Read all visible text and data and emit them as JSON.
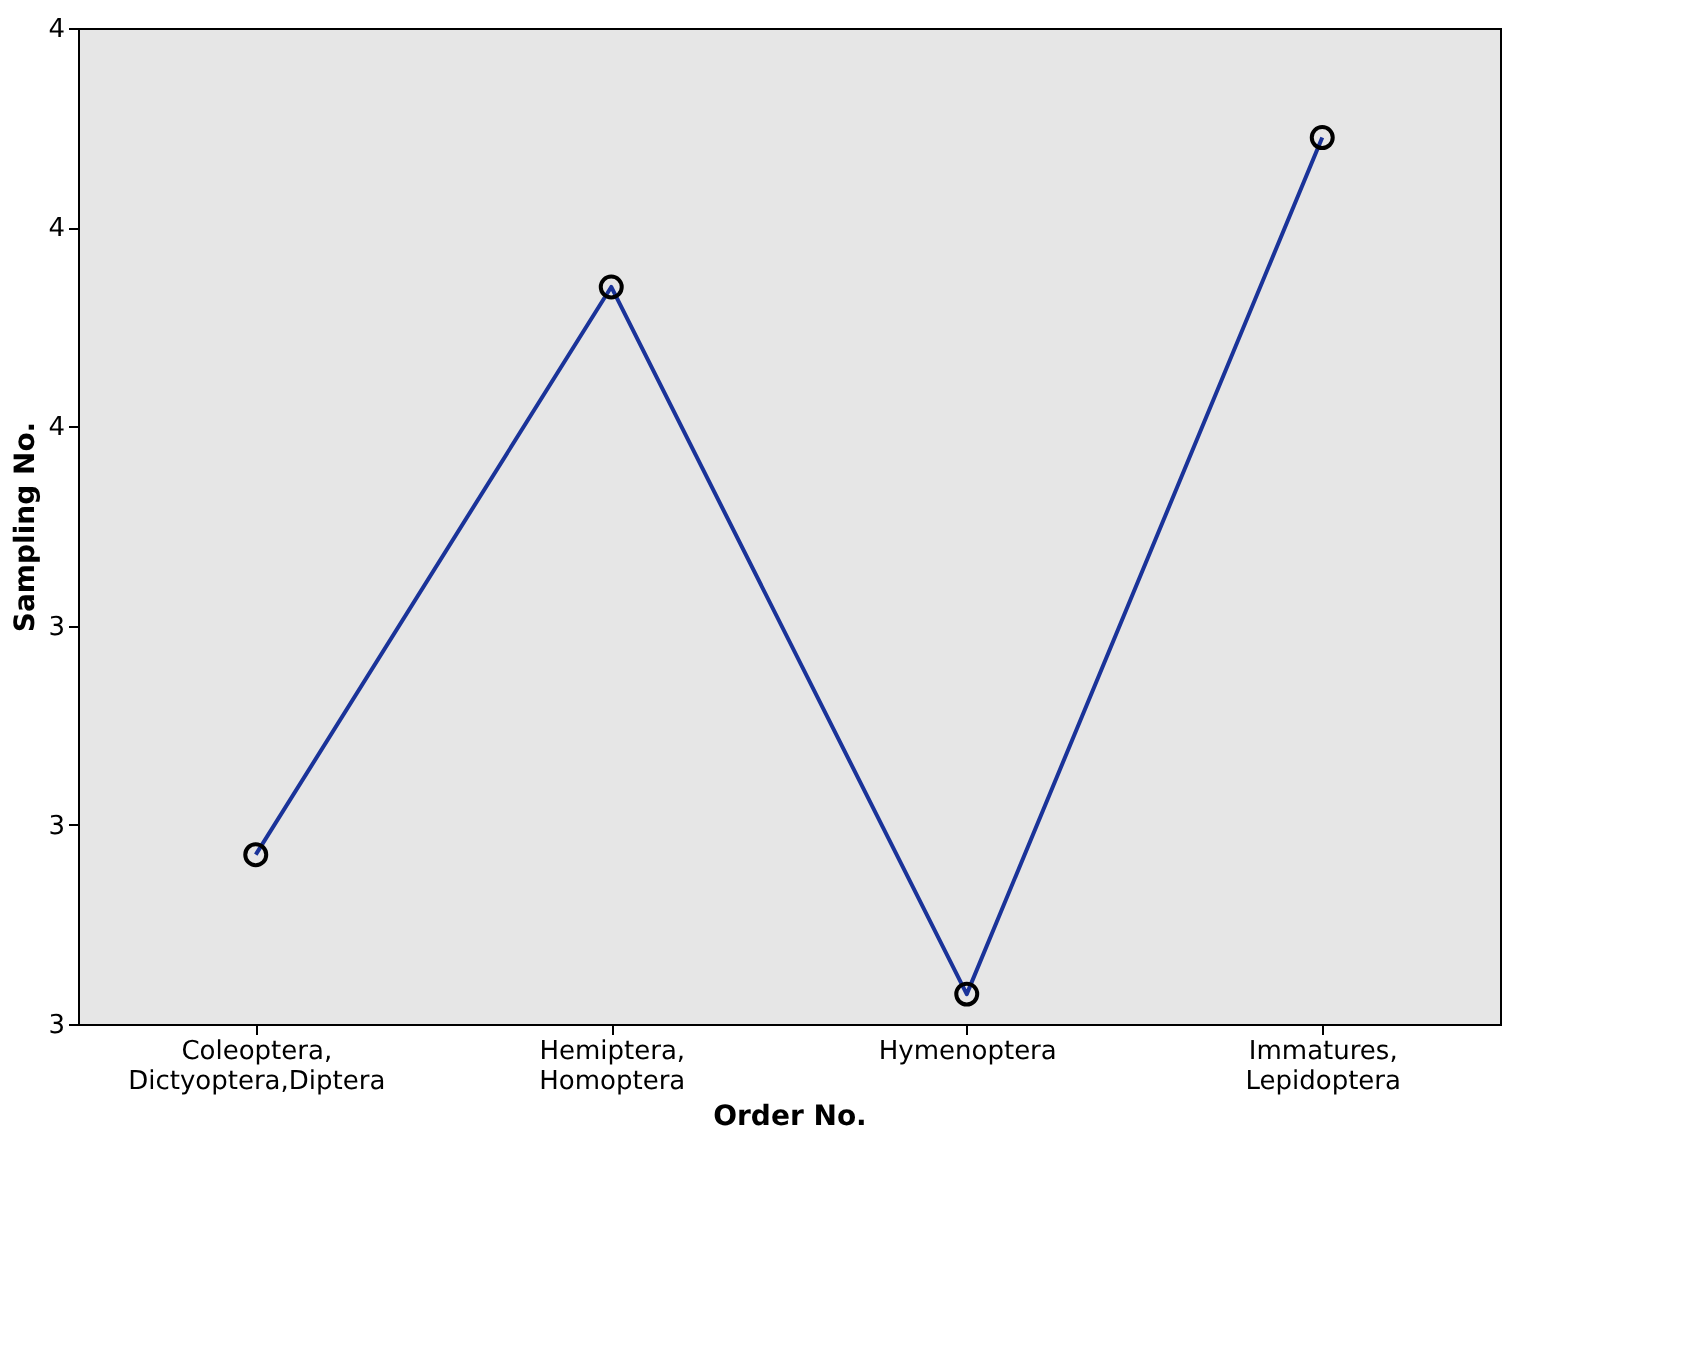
{
  "chart_data": {
    "type": "line",
    "xlabel": "Order No.",
    "ylabel": "Sampling No.",
    "categories": [
      "Coleoptera,\nDictyoptera,Diptera",
      "Hemiptera,\nHomoptera",
      "Hymenoptera",
      "Immatures,\nLepidoptera"
    ],
    "series": [
      {
        "color": "#1a3399",
        "values": [
          3.17,
          3.74,
          3.03,
          3.89
        ]
      }
    ],
    "ylim": [
      3.0,
      4.0
    ],
    "yticks": [
      {
        "value": 3.0,
        "label": "3"
      },
      {
        "value": 3.2,
        "label": "3"
      },
      {
        "value": 3.4,
        "label": "3"
      },
      {
        "value": 3.6,
        "label": "4"
      },
      {
        "value": 3.8,
        "label": "4"
      },
      {
        "value": 4.0,
        "label": "4"
      }
    ],
    "marker": "circle",
    "line_style": "solid",
    "grid": false
  }
}
